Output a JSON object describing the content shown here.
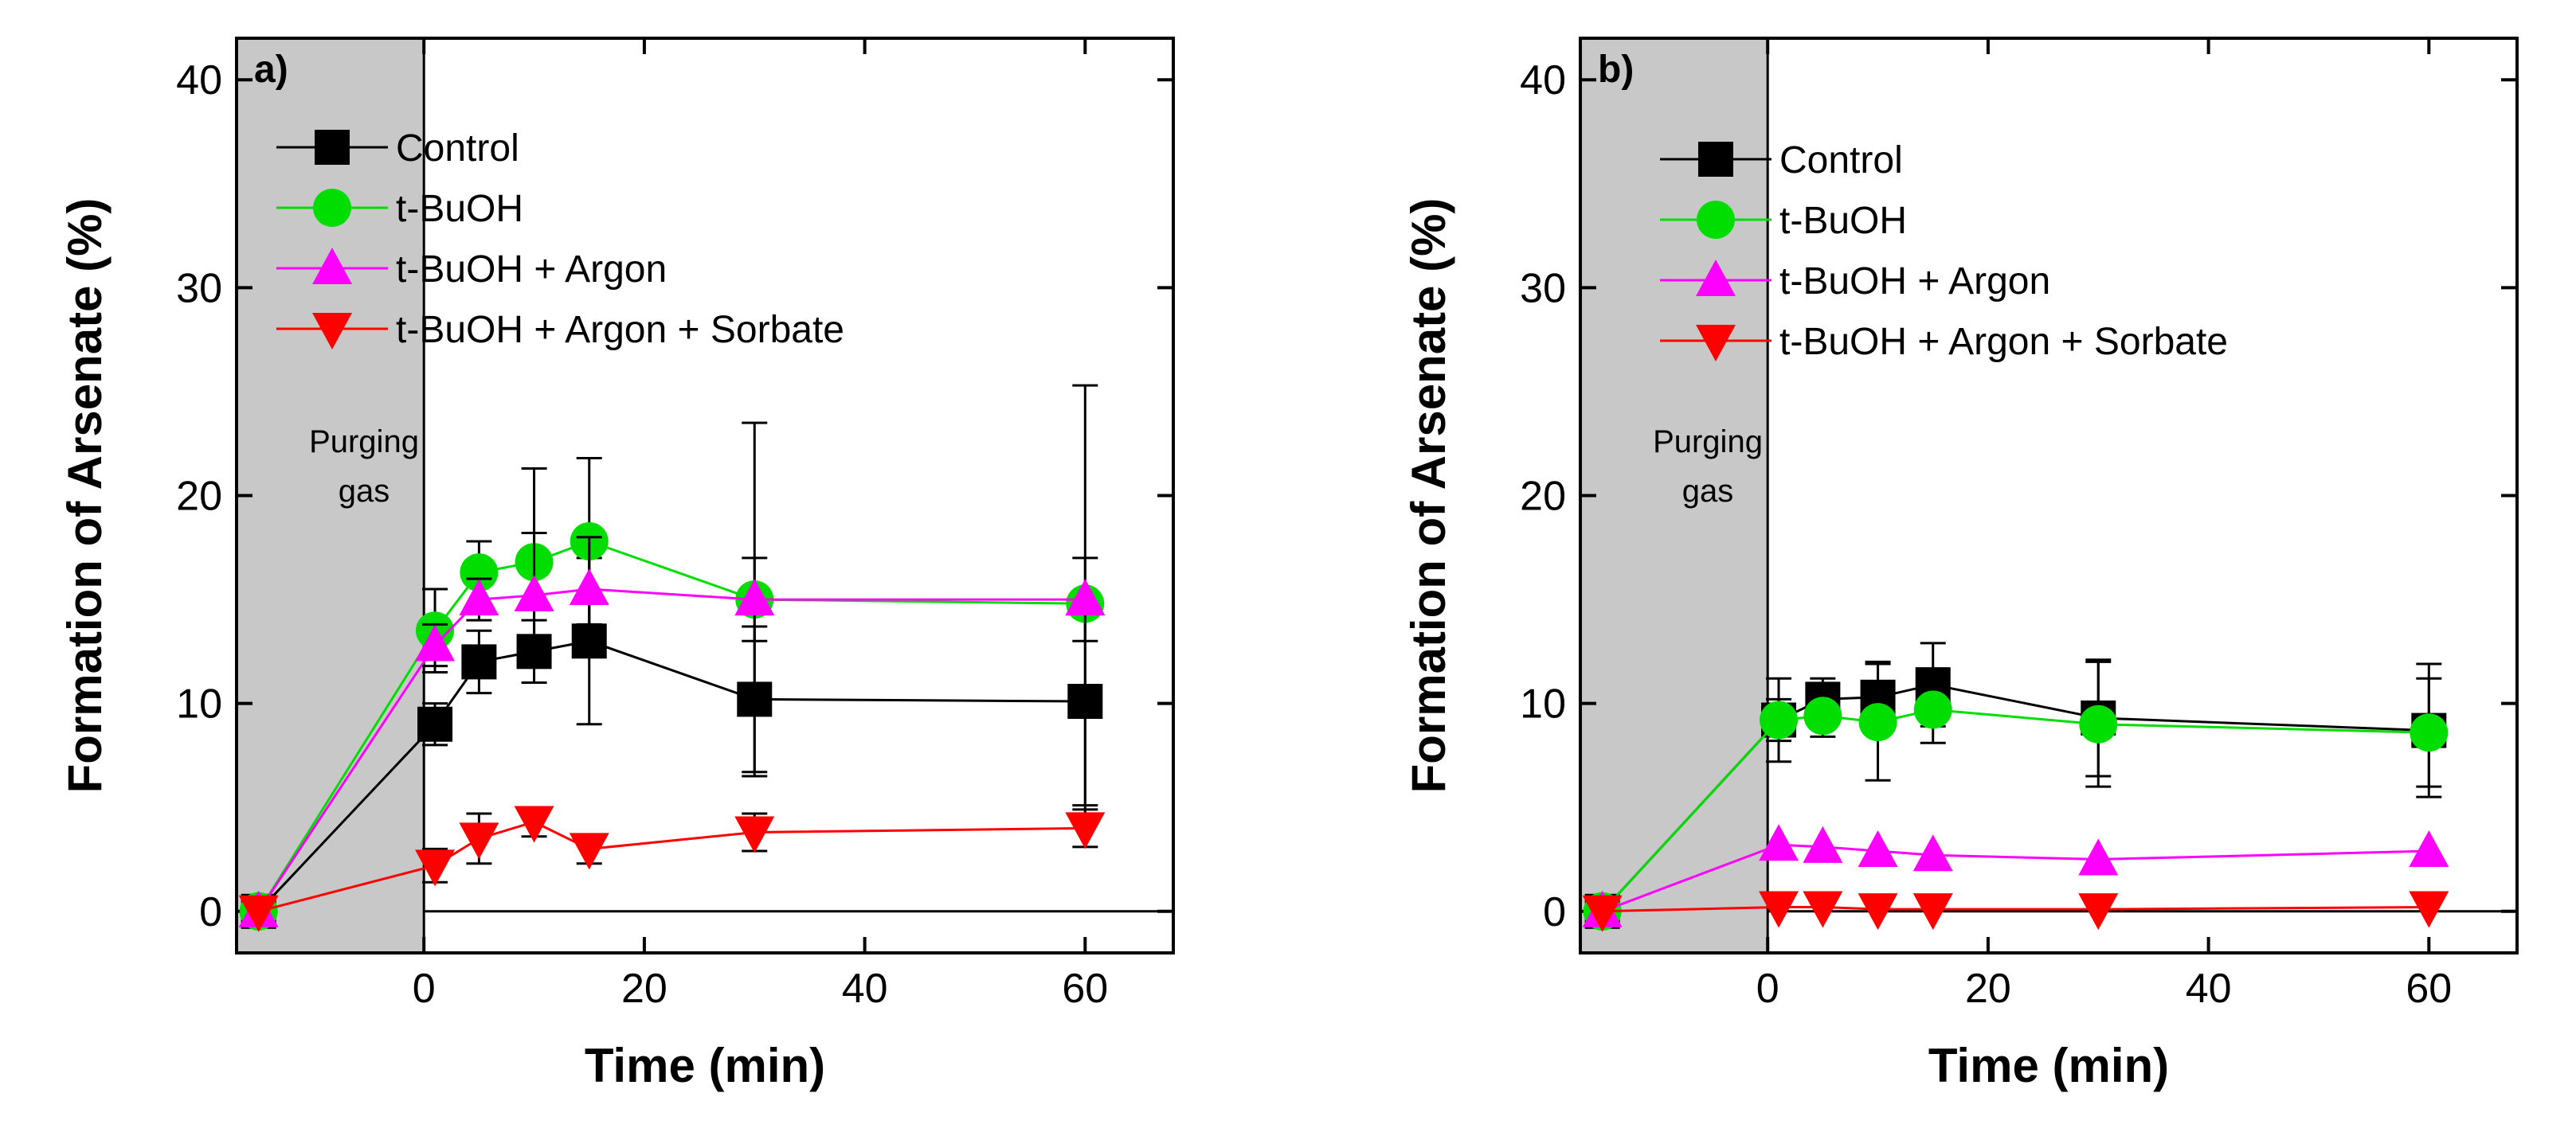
{
  "chart_data": [
    {
      "type": "line",
      "panel_label": "a)",
      "xlabel": "Time (min)",
      "ylabel": "Formation of Arsenate (%)",
      "xlim": [
        -17,
        68
      ],
      "ylim": [
        -2,
        42
      ],
      "xticks": [
        0,
        20,
        40,
        60
      ],
      "yticks": [
        0,
        10,
        20,
        30,
        40
      ],
      "shaded_region": {
        "from": -17,
        "to": 0,
        "label_lines": [
          "Purging",
          "gas"
        ]
      },
      "legend_position": "top-right",
      "series": [
        {
          "name": "Control",
          "color": "#000000",
          "marker": "square",
          "x": [
            -15,
            1,
            5,
            10,
            15,
            30,
            60
          ],
          "y": [
            0,
            9,
            12,
            12.5,
            13,
            10.2,
            10.1
          ],
          "err": [
            0,
            1,
            1.5,
            1.5,
            4,
            3.5,
            5
          ]
        },
        {
          "name": "t-BuOH",
          "color": "#00dd00",
          "marker": "circle",
          "x": [
            -15,
            1,
            5,
            10,
            15,
            30,
            60
          ],
          "y": [
            0,
            13.5,
            16.3,
            16.8,
            17.8,
            15,
            14.8
          ],
          "err": [
            0,
            2,
            1.5,
            4.5,
            4,
            8.5,
            10.5
          ]
        },
        {
          "name": "t-BuOH + Argon",
          "color": "#ff00ff",
          "marker": "triangle-up",
          "x": [
            -15,
            1,
            5,
            10,
            15,
            30,
            60
          ],
          "y": [
            0,
            12.8,
            15,
            15.2,
            15.5,
            15,
            15
          ],
          "err": [
            0,
            1,
            1,
            3,
            2.5,
            2,
            2
          ]
        },
        {
          "name": "t-BuOH + Argon + Sorbate",
          "color": "#ff0000",
          "marker": "triangle-down",
          "x": [
            -15,
            1,
            5,
            10,
            15,
            30,
            60
          ],
          "y": [
            0,
            2.2,
            3.5,
            4.3,
            3,
            3.8,
            4
          ],
          "err": [
            0,
            0.8,
            1.2,
            0.7,
            0.7,
            0.9,
            0.9
          ]
        }
      ]
    },
    {
      "type": "line",
      "panel_label": "b)",
      "xlabel": "Time (min)",
      "ylabel": "Formation of Arsenate (%)",
      "xlim": [
        -17,
        68
      ],
      "ylim": [
        -2,
        42
      ],
      "xticks": [
        0,
        20,
        40,
        60
      ],
      "yticks": [
        0,
        10,
        20,
        30,
        40
      ],
      "shaded_region": {
        "from": -17,
        "to": 0,
        "label_lines": [
          "Purging",
          "gas"
        ]
      },
      "legend_position": "top-right",
      "series": [
        {
          "name": "Control",
          "color": "#000000",
          "marker": "square",
          "x": [
            -15,
            1,
            5,
            10,
            15,
            30,
            60
          ],
          "y": [
            0,
            9.2,
            10.2,
            10.3,
            10.9,
            9.3,
            8.7
          ],
          "err": [
            0,
            2,
            1,
            1.7,
            2,
            2.8,
            3.2
          ]
        },
        {
          "name": "t-BuOH",
          "color": "#00dd00",
          "marker": "circle",
          "x": [
            -15,
            1,
            5,
            10,
            15,
            30,
            60
          ],
          "y": [
            0,
            9.2,
            9.4,
            9.1,
            9.7,
            9,
            8.6
          ],
          "err": [
            0,
            1,
            1,
            2.8,
            1.6,
            3,
            2.6
          ]
        },
        {
          "name": "t-BuOH + Argon",
          "color": "#ff00ff",
          "marker": "triangle-up",
          "x": [
            -15,
            1,
            5,
            10,
            15,
            30,
            60
          ],
          "y": [
            0,
            3.2,
            3.1,
            2.9,
            2.7,
            2.5,
            2.9
          ],
          "err": [
            0,
            0,
            0,
            0,
            0,
            0,
            0
          ]
        },
        {
          "name": "t-BuOH + Argon + Sorbate",
          "color": "#ff0000",
          "marker": "triangle-down",
          "x": [
            -15,
            1,
            5,
            10,
            15,
            30,
            60
          ],
          "y": [
            0,
            0.2,
            0.2,
            0.1,
            0.1,
            0.1,
            0.2
          ],
          "err": [
            0,
            0,
            0,
            0,
            0,
            0,
            0
          ]
        }
      ]
    }
  ]
}
